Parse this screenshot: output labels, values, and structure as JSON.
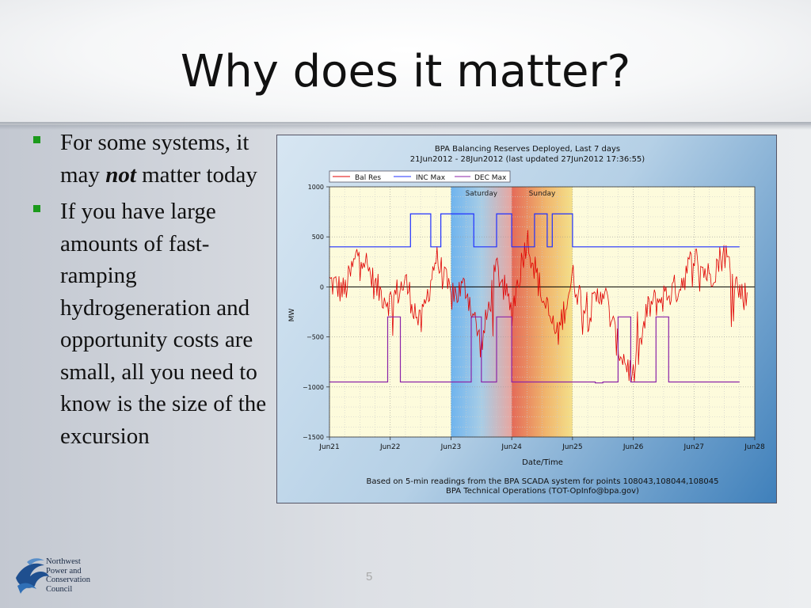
{
  "slide": {
    "title": "Why does it matter?",
    "page_number": "5",
    "bullets": [
      {
        "pre": "For some systems, it may ",
        "em": "not",
        "post": " matter today"
      },
      {
        "pre": "If you have large amounts of fast-ramping hydrogeneration and opportunity costs are small, all you need to know is the size of the excursion",
        "em": "",
        "post": ""
      }
    ],
    "logo_lines": [
      "Northwest",
      "Power and",
      "Conservation",
      "Council"
    ]
  },
  "colors": {
    "bullet": "#1c9a1c",
    "bal_res": "#e00000",
    "inc_max": "#2030ff",
    "dec_max": "#8b23a8",
    "plot_bg": "#fdfbdc"
  },
  "chart_data": {
    "type": "line",
    "title": "BPA Balancing Reserves Deployed, Last 7 days",
    "subtitle": "21Jun2012 - 28Jun2012 (last updated 27Jun2012 17:36:55)",
    "xlabel": "Date/Time",
    "ylabel": "MW",
    "x_ticks": [
      "Jun21",
      "Jun22",
      "Jun23",
      "Jun24",
      "Jun25",
      "Jun26",
      "Jun27",
      "Jun28"
    ],
    "y_ticks": [
      1000,
      500,
      0,
      -500,
      -1000,
      -1500
    ],
    "y_tick_labels": [
      "1000",
      "500",
      "0",
      "−500",
      "−1000",
      "−1500"
    ],
    "ylim": [
      -1500,
      1000
    ],
    "xlim": [
      "2012-06-21",
      "2012-06-28"
    ],
    "grid": true,
    "legend_position": "top-left",
    "weekend_bands": [
      {
        "label": "Saturday",
        "start": "2012-06-23",
        "end": "2012-06-24"
      },
      {
        "label": "Sunday",
        "start": "2012-06-24",
        "end": "2012-06-25"
      }
    ],
    "footer": [
      "Based on 5-min readings from the BPA SCADA system for points 108043,108044,108045",
      "BPA Technical Operations (TOT-OpInfo@bpa.gov)"
    ],
    "series": [
      {
        "name": "Bal Res",
        "kind": "noisy",
        "x": [
          "Jun21 00:00",
          "Jun21 06:00",
          "Jun21 12:00",
          "Jun21 18:00",
          "Jun22 00:00",
          "Jun22 06:00",
          "Jun22 12:00",
          "Jun22 18:00",
          "Jun23 00:00",
          "Jun23 06:00",
          "Jun23 12:00",
          "Jun23 18:00",
          "Jun24 00:00",
          "Jun24 06:00",
          "Jun24 12:00",
          "Jun24 18:00",
          "Jun25 00:00",
          "Jun25 06:00",
          "Jun25 12:00",
          "Jun25 18:00",
          "Jun26 00:00",
          "Jun26 06:00",
          "Jun26 12:00",
          "Jun26 18:00",
          "Jun27 00:00",
          "Jun27 06:00",
          "Jun27 12:00",
          "Jun27 18:00"
        ],
        "y": [
          50,
          -50,
          400,
          0,
          -150,
          50,
          -400,
          300,
          -100,
          0,
          -600,
          200,
          -250,
          500,
          -100,
          -500,
          100,
          -300,
          0,
          -600,
          -900,
          -200,
          -100,
          0,
          300,
          100,
          350,
          -50
        ],
        "range": [
          -950,
          620
        ]
      },
      {
        "name": "INC Max",
        "kind": "step",
        "x": [
          "2012-06-21",
          "2012-06-22 08:00",
          "2012-06-22 16:00",
          "2012-06-22 20:00",
          "2012-06-23 09:00",
          "2012-06-23 18:00",
          "2012-06-24 00:00",
          "2012-06-24 09:00",
          "2012-06-24 14:00",
          "2012-06-24 16:00",
          "2012-06-25 00:00",
          "2012-06-27 18:00"
        ],
        "y": [
          400,
          730,
          400,
          730,
          400,
          730,
          400,
          730,
          400,
          730,
          400,
          400
        ]
      },
      {
        "name": "DEC Max",
        "kind": "step",
        "x": [
          "2012-06-21",
          "2012-06-21 23:00",
          "2012-06-22 04:00",
          "2012-06-23 08:00",
          "2012-06-23 12:00",
          "2012-06-23 18:00",
          "2012-06-24 00:00",
          "2012-06-25 09:00",
          "2012-06-25 12:00",
          "2012-06-25 18:00",
          "2012-06-25 23:00",
          "2012-06-26 09:00",
          "2012-06-26 14:00",
          "2012-06-27 18:00"
        ],
        "y": [
          -950,
          -300,
          -950,
          -300,
          -950,
          -300,
          -950,
          -960,
          -950,
          -300,
          -950,
          -300,
          -950,
          -950
        ]
      }
    ]
  }
}
